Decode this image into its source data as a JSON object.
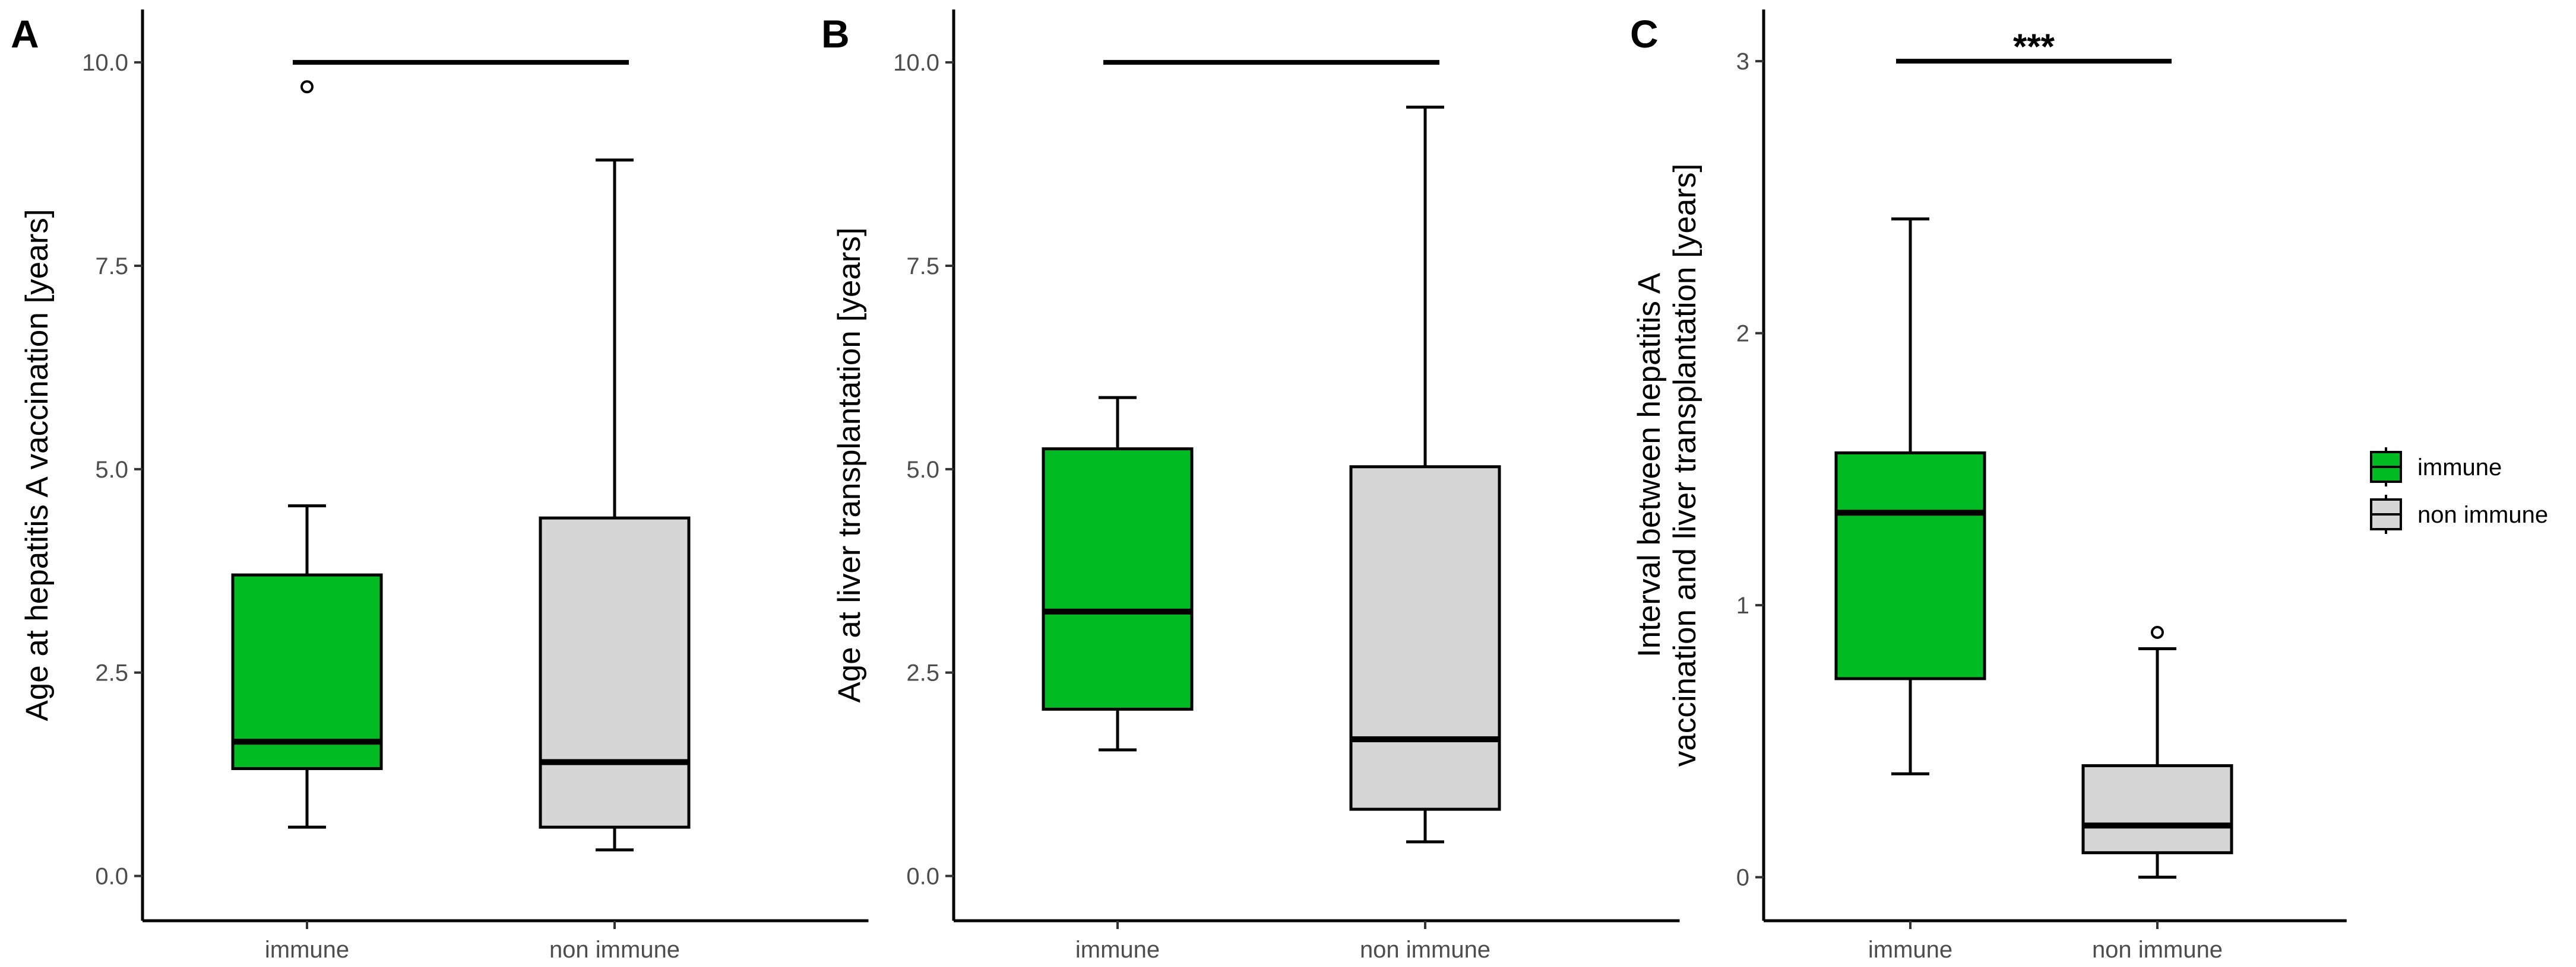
{
  "colors": {
    "immune": "#00bb22",
    "non_immune": "#d6d6d6"
  },
  "legend": {
    "placement": "right",
    "items": [
      {
        "label": "immune",
        "color": "#00bb22"
      },
      {
        "label": "non immune",
        "color": "#d6d6d6"
      }
    ]
  },
  "chart_data": [
    {
      "type": "box",
      "panel": "A",
      "title": "",
      "xlabel": "",
      "ylabel": "Age at hepatitis A vaccination [years]",
      "ylim": [
        -0.55,
        10.65
      ],
      "yticks": [
        0.0,
        2.5,
        5.0,
        7.5,
        10.0
      ],
      "ytick_labels": [
        "0.0",
        "2.5",
        "5.0",
        "7.5",
        "10.0"
      ],
      "categories": [
        "immune",
        "non immune"
      ],
      "boxes": [
        {
          "category": "immune",
          "min": 0.6,
          "q1": 1.32,
          "median": 1.65,
          "q3": 3.7,
          "max": 4.55,
          "outliers": [
            9.7
          ]
        },
        {
          "category": "non immune",
          "min": 0.32,
          "q1": 0.6,
          "median": 1.4,
          "q3": 4.4,
          "max": 8.8,
          "outliers": []
        }
      ],
      "significance": {
        "y": 10.0,
        "label": ""
      }
    },
    {
      "type": "box",
      "panel": "B",
      "title": "",
      "xlabel": "",
      "ylabel": "Age at liver transplantation [years]",
      "ylim": [
        -0.55,
        10.65
      ],
      "yticks": [
        0.0,
        2.5,
        5.0,
        7.5,
        10.0
      ],
      "ytick_labels": [
        "0.0",
        "2.5",
        "5.0",
        "7.5",
        "10.0"
      ],
      "categories": [
        "immune",
        "non immune"
      ],
      "boxes": [
        {
          "category": "immune",
          "min": 1.55,
          "q1": 2.05,
          "median": 3.25,
          "q3": 5.25,
          "max": 5.88,
          "outliers": []
        },
        {
          "category": "non immune",
          "min": 0.42,
          "q1": 0.82,
          "median": 1.68,
          "q3": 5.03,
          "max": 9.45,
          "outliers": []
        }
      ],
      "significance": {
        "y": 10.0,
        "label": ""
      }
    },
    {
      "type": "box",
      "panel": "C",
      "title": "",
      "xlabel": "",
      "ylabel_lines": [
        "Interval between hepatitis A",
        "vaccination and liver transplantation [years]"
      ],
      "ylim": [
        -0.16,
        3.19
      ],
      "yticks": [
        0,
        1,
        2,
        3
      ],
      "ytick_labels": [
        "0",
        "1",
        "2",
        "3"
      ],
      "categories": [
        "immune",
        "non immune"
      ],
      "boxes": [
        {
          "category": "immune",
          "min": 0.38,
          "q1": 0.73,
          "median": 1.34,
          "q3": 1.56,
          "max": 2.42,
          "outliers": []
        },
        {
          "category": "non immune",
          "min": 0.0,
          "q1": 0.09,
          "median": 0.19,
          "q3": 0.41,
          "max": 0.84,
          "outliers": [
            0.9
          ]
        }
      ],
      "significance": {
        "y": 3.0,
        "label": "***"
      }
    }
  ]
}
